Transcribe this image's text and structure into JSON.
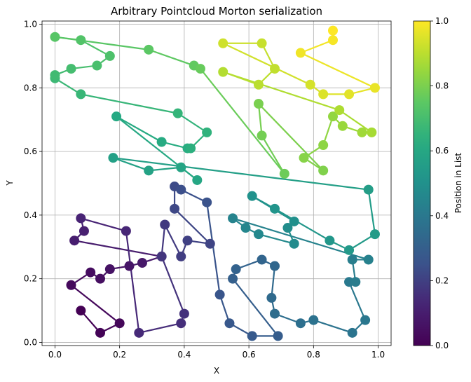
{
  "chart_data": {
    "type": "line",
    "title": "Arbitrary Pointcloud Morton serialization",
    "xlabel": "X",
    "ylabel": "Y",
    "xlim": [
      -0.04,
      1.04
    ],
    "ylim": [
      -0.01,
      1.01
    ],
    "xticks": [
      "0.0",
      "0.2",
      "0.4",
      "0.6",
      "0.8",
      "1.0"
    ],
    "yticks": [
      "0.0",
      "0.2",
      "0.4",
      "0.6",
      "0.8",
      "1.0"
    ],
    "grid": true,
    "colormap": "viridis",
    "colorbar": {
      "label": "Position in List",
      "range": [
        0,
        1
      ],
      "ticks": [
        "0.0",
        "0.2",
        "0.4",
        "0.6",
        "0.8",
        "1.0"
      ]
    },
    "points": [
      [
        0.08,
        0.1
      ],
      [
        0.14,
        0.03
      ],
      [
        0.2,
        0.06
      ],
      [
        0.05,
        0.18
      ],
      [
        0.11,
        0.22
      ],
      [
        0.14,
        0.2
      ],
      [
        0.17,
        0.23
      ],
      [
        0.23,
        0.24
      ],
      [
        0.27,
        0.25
      ],
      [
        0.33,
        0.27
      ],
      [
        0.06,
        0.32
      ],
      [
        0.09,
        0.35
      ],
      [
        0.08,
        0.39
      ],
      [
        0.22,
        0.35
      ],
      [
        0.26,
        0.03
      ],
      [
        0.39,
        0.06
      ],
      [
        0.4,
        0.09
      ],
      [
        0.33,
        0.27
      ],
      [
        0.34,
        0.37
      ],
      [
        0.39,
        0.27
      ],
      [
        0.41,
        0.32
      ],
      [
        0.48,
        0.31
      ],
      [
        0.37,
        0.42
      ],
      [
        0.37,
        0.49
      ],
      [
        0.39,
        0.48
      ],
      [
        0.47,
        0.44
      ],
      [
        0.51,
        0.15
      ],
      [
        0.54,
        0.06
      ],
      [
        0.61,
        0.02
      ],
      [
        0.69,
        0.02
      ],
      [
        0.55,
        0.2
      ],
      [
        0.56,
        0.23
      ],
      [
        0.64,
        0.26
      ],
      [
        0.68,
        0.24
      ],
      [
        0.67,
        0.14
      ],
      [
        0.68,
        0.09
      ],
      [
        0.76,
        0.06
      ],
      [
        0.8,
        0.07
      ],
      [
        0.92,
        0.03
      ],
      [
        0.96,
        0.07
      ],
      [
        0.91,
        0.19
      ],
      [
        0.93,
        0.19
      ],
      [
        0.92,
        0.26
      ],
      [
        0.97,
        0.26
      ],
      [
        0.55,
        0.39
      ],
      [
        0.59,
        0.36
      ],
      [
        0.63,
        0.34
      ],
      [
        0.74,
        0.31
      ],
      [
        0.72,
        0.36
      ],
      [
        0.74,
        0.38
      ],
      [
        0.61,
        0.46
      ],
      [
        0.68,
        0.42
      ],
      [
        0.85,
        0.32
      ],
      [
        0.91,
        0.29
      ],
      [
        0.99,
        0.34
      ],
      [
        0.97,
        0.48
      ],
      [
        0.18,
        0.58
      ],
      [
        0.29,
        0.54
      ],
      [
        0.39,
        0.55
      ],
      [
        0.44,
        0.51
      ],
      [
        0.19,
        0.71
      ],
      [
        0.33,
        0.63
      ],
      [
        0.41,
        0.61
      ],
      [
        0.42,
        0.61
      ],
      [
        0.47,
        0.66
      ],
      [
        0.38,
        0.72
      ],
      [
        0.08,
        0.78
      ],
      [
        0.0,
        0.83
      ],
      [
        0.0,
        0.84
      ],
      [
        0.05,
        0.86
      ],
      [
        0.13,
        0.87
      ],
      [
        0.17,
        0.9
      ],
      [
        0.08,
        0.95
      ],
      [
        0.0,
        0.96
      ],
      [
        0.29,
        0.92
      ],
      [
        0.43,
        0.87
      ],
      [
        0.45,
        0.86
      ],
      [
        0.71,
        0.53
      ],
      [
        0.64,
        0.65
      ],
      [
        0.63,
        0.75
      ],
      [
        0.83,
        0.54
      ],
      [
        0.77,
        0.58
      ],
      [
        0.83,
        0.62
      ],
      [
        0.86,
        0.71
      ],
      [
        0.89,
        0.68
      ],
      [
        0.95,
        0.66
      ],
      [
        0.98,
        0.66
      ],
      [
        0.88,
        0.73
      ],
      [
        0.52,
        0.85
      ],
      [
        0.63,
        0.81
      ],
      [
        0.68,
        0.86
      ],
      [
        0.64,
        0.94
      ],
      [
        0.52,
        0.94
      ],
      [
        0.79,
        0.81
      ],
      [
        0.83,
        0.78
      ],
      [
        0.91,
        0.78
      ],
      [
        0.99,
        0.8
      ],
      [
        0.76,
        0.91
      ],
      [
        0.86,
        0.95
      ],
      [
        0.86,
        0.98
      ]
    ]
  }
}
